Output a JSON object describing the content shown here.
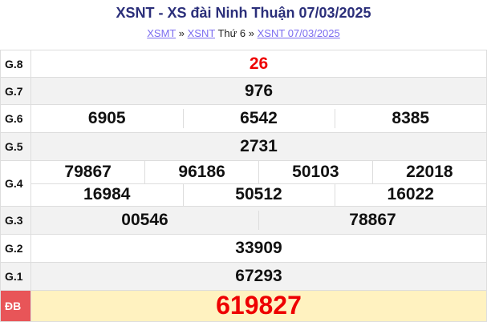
{
  "header": {
    "title": "XSNT - XS đài Ninh Thuận 07/03/2025",
    "breadcrumb": {
      "link1": "XSMT",
      "sep1": "»",
      "link2": "XSNT",
      "text": "Thứ 6",
      "sep2": "»",
      "link3": "XSNT 07/03/2025"
    }
  },
  "prizes": {
    "g8": {
      "label": "G.8",
      "numbers": [
        "26"
      ]
    },
    "g7": {
      "label": "G.7",
      "numbers": [
        "976"
      ]
    },
    "g6": {
      "label": "G.6",
      "numbers": [
        "6905",
        "6542",
        "8385"
      ]
    },
    "g5": {
      "label": "G.5",
      "numbers": [
        "2731"
      ]
    },
    "g4": {
      "label": "G.4",
      "numbers": [
        "79867",
        "96186",
        "50103",
        "22018",
        "16984",
        "50512",
        "16022"
      ]
    },
    "g3": {
      "label": "G.3",
      "numbers": [
        "00546",
        "78867"
      ]
    },
    "g2": {
      "label": "G.2",
      "numbers": [
        "33909"
      ]
    },
    "g1": {
      "label": "G.1",
      "numbers": [
        "67293"
      ]
    },
    "db": {
      "label": "ĐB",
      "numbers": [
        "619827"
      ]
    }
  },
  "colors": {
    "title": "#2b2f7a",
    "highlight": "#e00000",
    "special_bg": "#fff2c0",
    "special_label_bg": "#e85558"
  }
}
